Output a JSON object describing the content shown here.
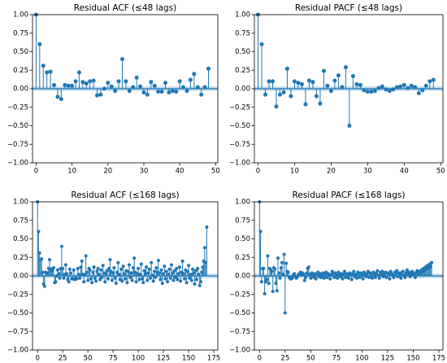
{
  "chart_data": [
    {
      "type": "stem",
      "title": "Residual ACF (≤48 lags)",
      "xlim": [
        -1,
        50.6
      ],
      "ylim": [
        -1,
        1
      ],
      "xticks": [
        0,
        10,
        20,
        30,
        40,
        50
      ],
      "yticks": [
        {
          "value": -1,
          "label": "−1.00"
        },
        {
          "value": -0.75,
          "label": "−0.75"
        },
        {
          "value": -0.5,
          "label": "−0.50"
        },
        {
          "value": -0.25,
          "label": "−0.25"
        },
        {
          "value": 0,
          "label": "0.00"
        },
        {
          "value": 0.25,
          "label": "0.25"
        },
        {
          "value": 0.5,
          "label": "0.50"
        },
        {
          "value": 0.75,
          "label": "0.75"
        },
        {
          "value": 1,
          "label": "1.00"
        }
      ],
      "band": 0.03,
      "color": "#1f77b4",
      "values": [
        1.0,
        0.6,
        0.31,
        0.22,
        0.23,
        0.05,
        -0.11,
        -0.14,
        0.05,
        0.04,
        0.04,
        0.1,
        0.22,
        0.09,
        0.07,
        0.1,
        0.11,
        -0.09,
        -0.08,
        0.0,
        0.08,
        0.03,
        -0.03,
        0.1,
        0.4,
        0.1,
        -0.03,
        0.02,
        0.15,
        0.03,
        -0.05,
        -0.08,
        0.09,
        0.04,
        -0.04,
        -0.04,
        0.08,
        -0.05,
        -0.03,
        -0.04,
        0.1,
        0.02,
        -0.03,
        0.12,
        0.2,
        0.02,
        -0.08,
        0.02,
        0.27
      ]
    },
    {
      "type": "stem",
      "title": "Residual PACF (≤48 lags)",
      "xlim": [
        -1,
        50.6
      ],
      "ylim": [
        -1,
        1
      ],
      "xticks": [
        0,
        10,
        20,
        30,
        40,
        50
      ],
      "yticks": [
        {
          "value": -1,
          "label": "−1.00"
        },
        {
          "value": -0.75,
          "label": "−0.75"
        },
        {
          "value": -0.5,
          "label": "−0.50"
        },
        {
          "value": -0.25,
          "label": "−0.25"
        },
        {
          "value": 0,
          "label": "0.00"
        },
        {
          "value": 0.25,
          "label": "0.25"
        },
        {
          "value": 0.5,
          "label": "0.50"
        },
        {
          "value": 0.75,
          "label": "0.75"
        },
        {
          "value": 1,
          "label": "1.00"
        }
      ],
      "band": 0.03,
      "color": "#1f77b4",
      "values": [
        1.0,
        0.6,
        -0.08,
        0.1,
        0.1,
        -0.24,
        -0.08,
        -0.05,
        0.27,
        -0.1,
        0.1,
        0.08,
        0.06,
        -0.21,
        0.11,
        0.09,
        -0.1,
        -0.2,
        0.24,
        0.04,
        -0.03,
        0.11,
        0.18,
        0.02,
        0.29,
        -0.5,
        0.17,
        0.06,
        0.05,
        -0.02,
        -0.04,
        -0.04,
        -0.03,
        0.01,
        0.03,
        -0.01,
        -0.03,
        -0.01,
        0.02,
        0.03,
        0.05,
        0.01,
        0.04,
        0.02,
        -0.06,
        -0.02,
        0.04,
        0.1,
        0.12
      ]
    },
    {
      "type": "stem",
      "title": "Residual ACF (≤168 lags)",
      "xlim": [
        -5,
        179
      ],
      "ylim": [
        -1,
        1
      ],
      "xticks": [
        0,
        25,
        50,
        75,
        100,
        125,
        150,
        175
      ],
      "yticks": [
        {
          "value": -1,
          "label": "−1.00"
        },
        {
          "value": -0.75,
          "label": "−0.75"
        },
        {
          "value": -0.5,
          "label": "−0.50"
        },
        {
          "value": -0.25,
          "label": "−0.25"
        },
        {
          "value": 0,
          "label": "0.00"
        },
        {
          "value": 0.25,
          "label": "0.25"
        },
        {
          "value": 0.5,
          "label": "0.50"
        },
        {
          "value": 0.75,
          "label": "0.75"
        },
        {
          "value": 1,
          "label": "1.00"
        }
      ],
      "band": 0.03,
      "color": "#1f77b4",
      "values": [
        1.0,
        0.6,
        0.31,
        0.22,
        0.23,
        0.05,
        -0.11,
        -0.14,
        0.05,
        0.04,
        0.04,
        0.1,
        0.22,
        0.09,
        0.07,
        0.1,
        0.11,
        -0.09,
        -0.08,
        0.0,
        0.08,
        0.03,
        -0.03,
        0.1,
        0.4,
        0.1,
        -0.03,
        0.02,
        0.15,
        0.03,
        -0.05,
        -0.08,
        0.09,
        0.04,
        -0.04,
        -0.04,
        0.08,
        -0.05,
        -0.03,
        -0.04,
        0.1,
        0.02,
        -0.03,
        0.12,
        0.2,
        0.02,
        -0.08,
        0.02,
        0.27,
        0.05,
        -0.06,
        0.1,
        0.08,
        -0.04,
        -0.09,
        0.05,
        0.12,
        -0.03,
        -0.07,
        0.06,
        0.1,
        0.02,
        -0.05,
        0.08,
        -0.02,
        0.14,
        0.04,
        -0.08,
        0.03,
        0.07,
        -0.04,
        0.1,
        0.22,
        0.06,
        -0.06,
        0.04,
        0.11,
        -0.03,
        -0.1,
        0.05,
        0.18,
        0.02,
        -0.05,
        0.09,
        -0.07,
        0.13,
        0.03,
        -0.04,
        0.07,
        -0.09,
        0.06,
        0.15,
        -0.02,
        0.04,
        -0.06,
        0.11,
        0.24,
        0.05,
        -0.08,
        0.03,
        0.1,
        -0.05,
        0.02,
        0.16,
        -0.04,
        -0.09,
        0.07,
        0.03,
        0.12,
        -0.06,
        0.04,
        0.09,
        -0.03,
        0.18,
        0.01,
        -0.07,
        0.06,
        -0.02,
        0.11,
        0.05,
        0.21,
        0.04,
        -0.05,
        0.08,
        -0.1,
        0.03,
        0.13,
        -0.04,
        0.06,
        -0.08,
        0.02,
        0.09,
        -0.03,
        0.15,
        0.04,
        -0.06,
        0.07,
        -0.02,
        0.1,
        -0.05,
        0.03,
        0.12,
        -0.07,
        0.05,
        0.2,
        0.03,
        -0.04,
        0.08,
        -0.09,
        0.06,
        0.14,
        -0.03,
        0.02,
        -0.06,
        0.09,
        0.04,
        -0.11,
        0.07,
        -0.05,
        0.1,
        0.02,
        -0.13,
        -0.08,
        0.05,
        0.12,
        0.2,
        0.38,
        0.18,
        0.66
      ]
    },
    {
      "type": "stem",
      "title": "Residual PACF (≤168 lags)",
      "xlim": [
        -5,
        179
      ],
      "ylim": [
        -1,
        1
      ],
      "xticks": [
        0,
        25,
        50,
        75,
        100,
        125,
        150,
        175
      ],
      "yticks": [
        {
          "value": -1,
          "label": "−1.00"
        },
        {
          "value": -0.75,
          "label": "−0.75"
        },
        {
          "value": -0.5,
          "label": "−0.50"
        },
        {
          "value": -0.25,
          "label": "−0.25"
        },
        {
          "value": 0,
          "label": "0.00"
        },
        {
          "value": 0.25,
          "label": "0.25"
        },
        {
          "value": 0.5,
          "label": "0.50"
        },
        {
          "value": 0.75,
          "label": "0.75"
        },
        {
          "value": 1,
          "label": "1.00"
        }
      ],
      "band": 0.03,
      "color": "#1f77b4",
      "values": [
        1.0,
        0.6,
        -0.08,
        0.1,
        0.1,
        -0.24,
        -0.08,
        -0.05,
        0.27,
        -0.1,
        0.1,
        0.08,
        0.06,
        -0.21,
        0.11,
        0.09,
        -0.1,
        -0.2,
        0.24,
        0.04,
        -0.03,
        0.11,
        0.18,
        0.02,
        0.29,
        -0.5,
        0.17,
        0.06,
        0.05,
        -0.02,
        -0.04,
        -0.04,
        -0.03,
        0.01,
        0.03,
        -0.01,
        -0.03,
        -0.01,
        0.02,
        0.03,
        0.05,
        0.01,
        0.04,
        0.02,
        -0.06,
        -0.02,
        0.04,
        0.1,
        0.12,
        0.02,
        -0.03,
        0.04,
        0.01,
        -0.02,
        0.03,
        -0.04,
        0.02,
        0.05,
        -0.01,
        0.03,
        -0.02,
        0.01,
        0.04,
        -0.03,
        0.02,
        0.05,
        -0.02,
        0.03,
        0.01,
        -0.04,
        0.02,
        0.06,
        0.03,
        -0.02,
        0.04,
        0.01,
        -0.03,
        0.05,
        0.02,
        -0.01,
        0.03,
        -0.04,
        0.02,
        0.06,
        -0.02,
        0.03,
        0.01,
        -0.03,
        0.04,
        0.02,
        -0.05,
        0.03,
        0.06,
        -0.01,
        0.02,
        -0.03,
        0.05,
        0.03,
        -0.02,
        0.04,
        0.01,
        -0.04,
        0.05,
        0.02,
        -0.01,
        0.03,
        0.06,
        -0.02,
        0.04,
        0.01,
        -0.03,
        0.05,
        0.02,
        -0.02,
        0.04,
        0.07,
        0.01,
        -0.03,
        0.05,
        0.02,
        0.06,
        -0.01,
        0.03,
        0.05,
        -0.02,
        0.04,
        0.02,
        -0.04,
        0.06,
        0.03,
        0.01,
        -0.02,
        0.05,
        0.03,
        0.07,
        -0.01,
        0.04,
        0.02,
        -0.03,
        0.05,
        0.06,
        0.01,
        -0.02,
        0.04,
        0.08,
        0.02,
        0.05,
        -0.01,
        0.03,
        0.06,
        0.04,
        0.02,
        -0.02,
        0.05,
        0.07,
        0.03,
        0.04,
        0.06,
        0.08,
        0.05,
        0.1,
        0.07,
        0.12,
        0.09,
        0.14,
        0.11,
        0.16,
        0.13,
        0.18
      ]
    }
  ]
}
